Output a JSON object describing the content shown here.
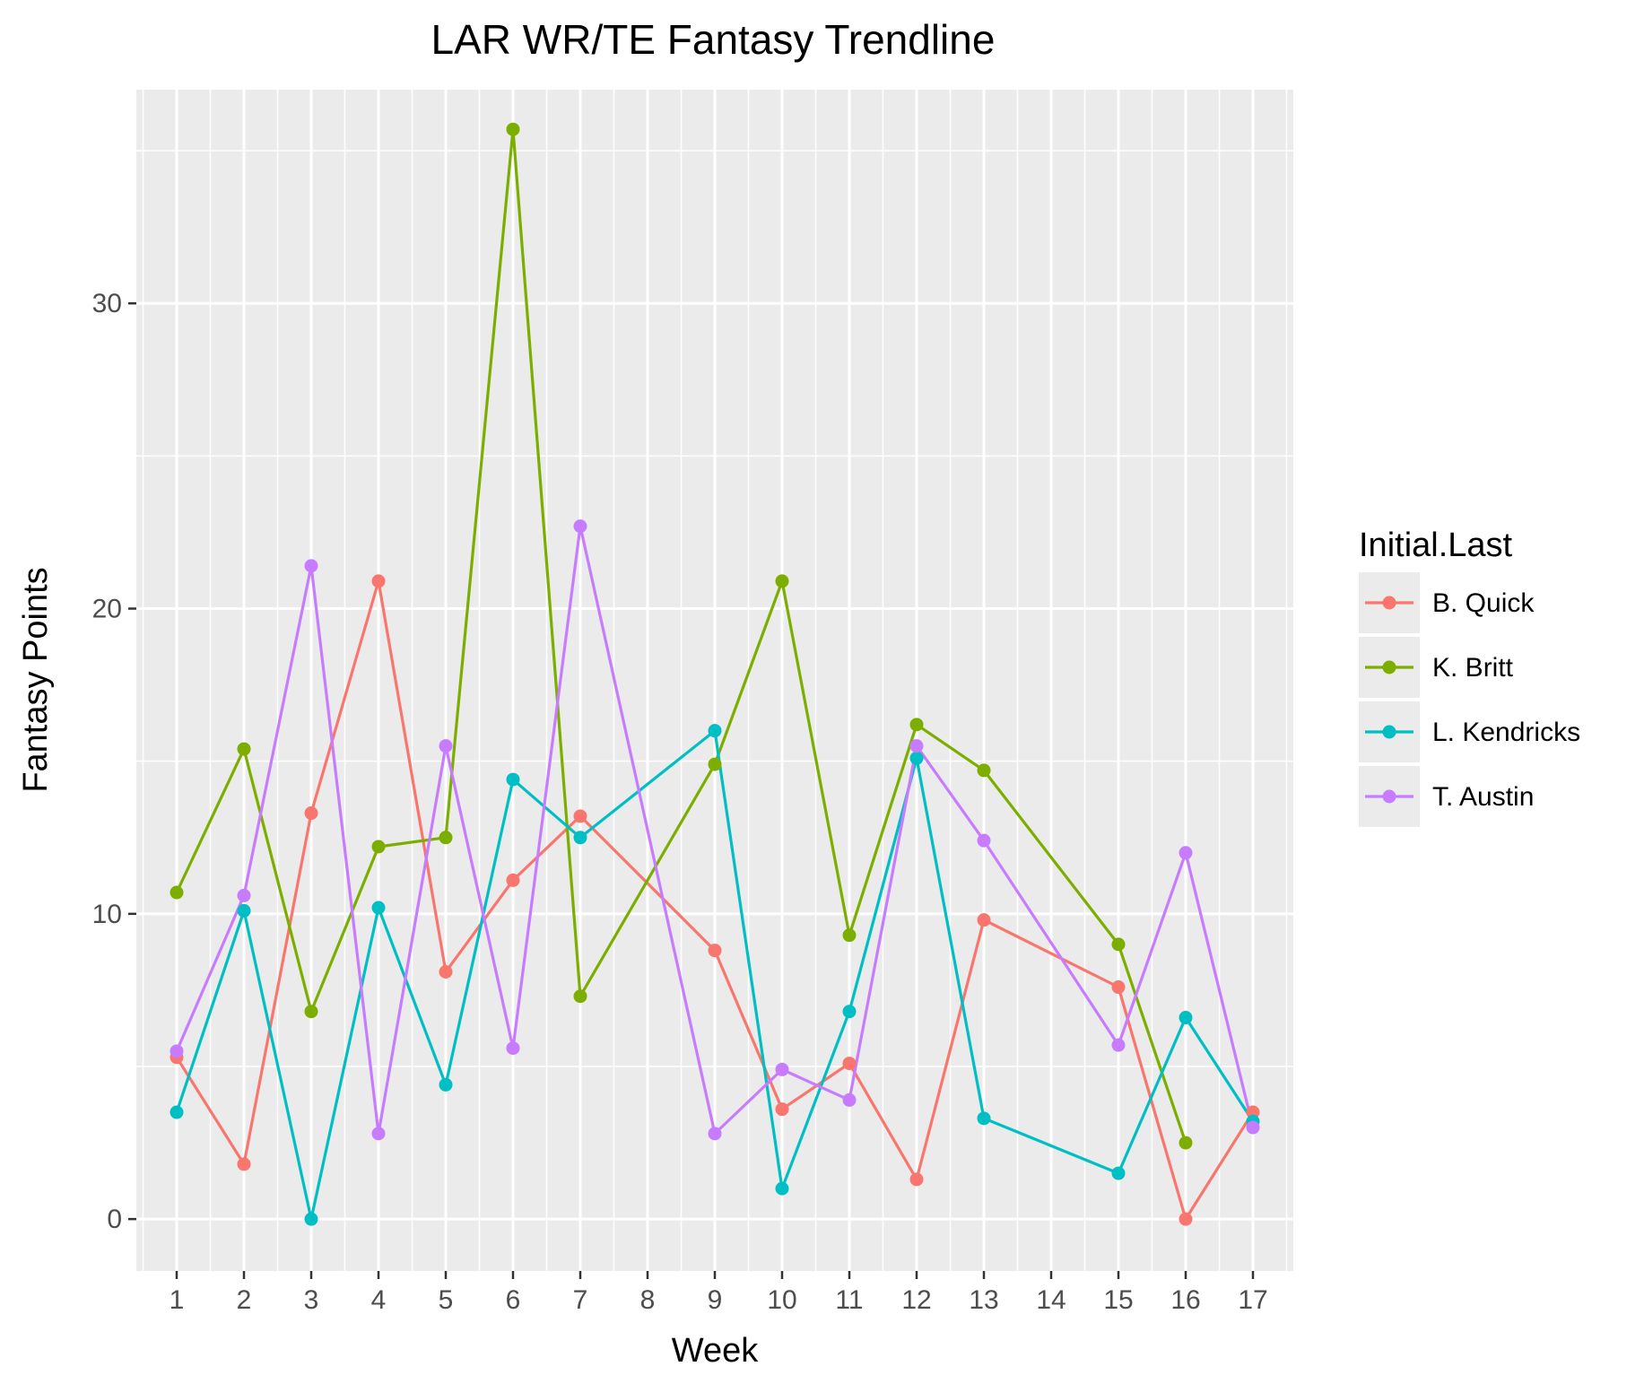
{
  "chart_data": {
    "type": "line",
    "title": "LAR WR/TE Fantasy Trendline",
    "xlabel": "Week",
    "ylabel": "Fantasy Points",
    "categories": [
      "1",
      "2",
      "3",
      "4",
      "5",
      "6",
      "7",
      "8",
      "9",
      "10",
      "11",
      "12",
      "13",
      "14",
      "15",
      "16",
      "17"
    ],
    "yticks": [
      0,
      10,
      20,
      30
    ],
    "ylim": [
      -1.7,
      37.0
    ],
    "grid": true,
    "legend": {
      "title": "Initial.Last",
      "placement": "right"
    },
    "series": [
      {
        "name": "B. Quick",
        "color": "#F8766D",
        "points": [
          [
            1,
            5.3
          ],
          [
            2,
            1.8
          ],
          [
            3,
            13.3
          ],
          [
            4,
            20.9
          ],
          [
            5,
            8.1
          ],
          [
            6,
            11.1
          ],
          [
            7,
            13.2
          ],
          [
            9,
            8.8
          ],
          [
            10,
            3.6
          ],
          [
            11,
            5.1
          ],
          [
            12,
            1.3
          ],
          [
            13,
            9.8
          ],
          [
            15,
            7.6
          ],
          [
            16,
            0.0
          ],
          [
            17,
            3.5
          ]
        ]
      },
      {
        "name": "K. Britt",
        "color": "#7CAE00",
        "points": [
          [
            1,
            10.7
          ],
          [
            2,
            15.4
          ],
          [
            3,
            6.8
          ],
          [
            4,
            12.2
          ],
          [
            5,
            12.5
          ],
          [
            6,
            35.7
          ],
          [
            7,
            7.3
          ],
          [
            9,
            14.9
          ],
          [
            10,
            20.9
          ],
          [
            11,
            9.3
          ],
          [
            12,
            16.2
          ],
          [
            13,
            14.7
          ],
          [
            15,
            9.0
          ],
          [
            16,
            2.5
          ]
        ]
      },
      {
        "name": "L. Kendricks",
        "color": "#00BFC4",
        "points": [
          [
            1,
            3.5
          ],
          [
            2,
            10.1
          ],
          [
            3,
            0.0
          ],
          [
            4,
            10.2
          ],
          [
            5,
            4.4
          ],
          [
            6,
            14.4
          ],
          [
            7,
            12.5
          ],
          [
            9,
            16.0
          ],
          [
            10,
            1.0
          ],
          [
            11,
            6.8
          ],
          [
            12,
            15.1
          ],
          [
            13,
            3.3
          ],
          [
            15,
            1.5
          ],
          [
            16,
            6.6
          ],
          [
            17,
            3.2
          ]
        ]
      },
      {
        "name": "T. Austin",
        "color": "#C77CFF",
        "points": [
          [
            1,
            5.5
          ],
          [
            2,
            10.6
          ],
          [
            3,
            21.4
          ],
          [
            4,
            2.8
          ],
          [
            5,
            15.5
          ],
          [
            6,
            5.6
          ],
          [
            7,
            22.7
          ],
          [
            9,
            2.8
          ],
          [
            10,
            4.9
          ],
          [
            11,
            3.9
          ],
          [
            12,
            15.5
          ],
          [
            13,
            12.4
          ],
          [
            15,
            5.7
          ],
          [
            16,
            12.0
          ],
          [
            17,
            3.0
          ]
        ]
      }
    ]
  }
}
